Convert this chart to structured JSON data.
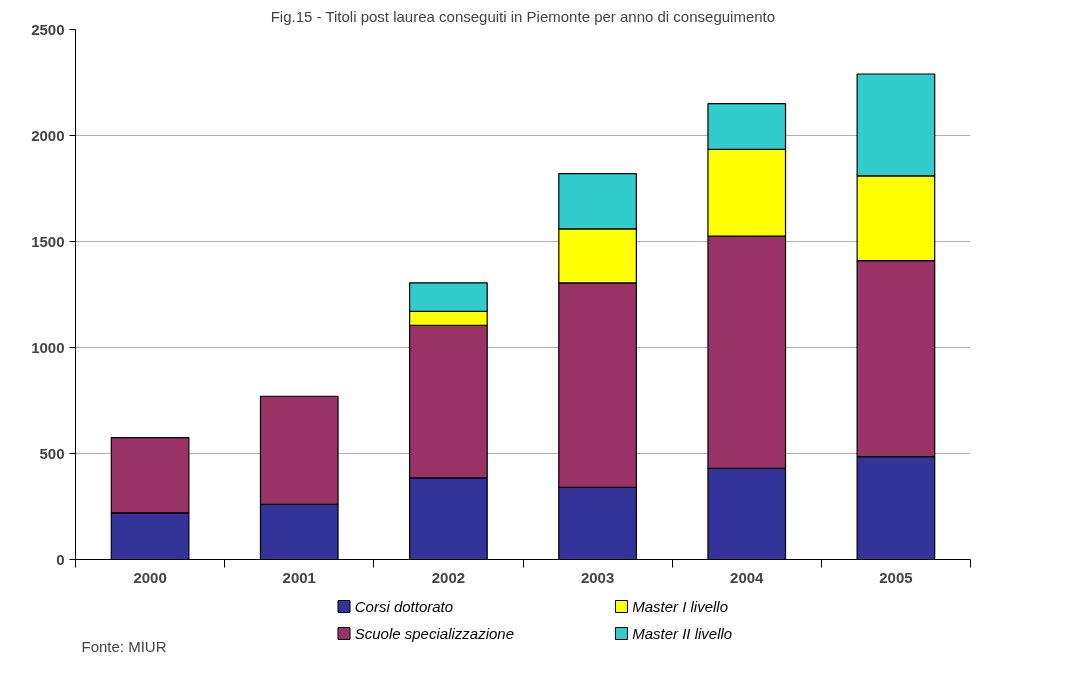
{
  "chart_data": {
    "type": "bar",
    "title": "Fig.15 - Titoli post laurea conseguiti in Piemonte per anno di conseguimento",
    "categories": [
      "2000",
      "2001",
      "2002",
      "2003",
      "2004",
      "2005"
    ],
    "stacked": true,
    "series": [
      {
        "name": "Corsi dottorato",
        "color": "#333399",
        "values": [
          220,
          260,
          385,
          340,
          430,
          485
        ]
      },
      {
        "name": "Scuole specializzazione",
        "color": "#993366",
        "values": [
          355,
          510,
          720,
          965,
          1095,
          925
        ]
      },
      {
        "name": "Master I livello",
        "color": "#ffff00",
        "values": [
          null,
          null,
          65,
          255,
          410,
          400
        ]
      },
      {
        "name": "Master II livello",
        "color": "#33cccc",
        "values": [
          null,
          null,
          135,
          260,
          215,
          480
        ]
      }
    ],
    "ylim": [
      0,
      2500
    ],
    "yticks": [
      0,
      500,
      1000,
      1500,
      2000,
      2500
    ],
    "grid": "y",
    "legend": "bottom",
    "annotations": [
      "Fonte: MIUR"
    ]
  }
}
